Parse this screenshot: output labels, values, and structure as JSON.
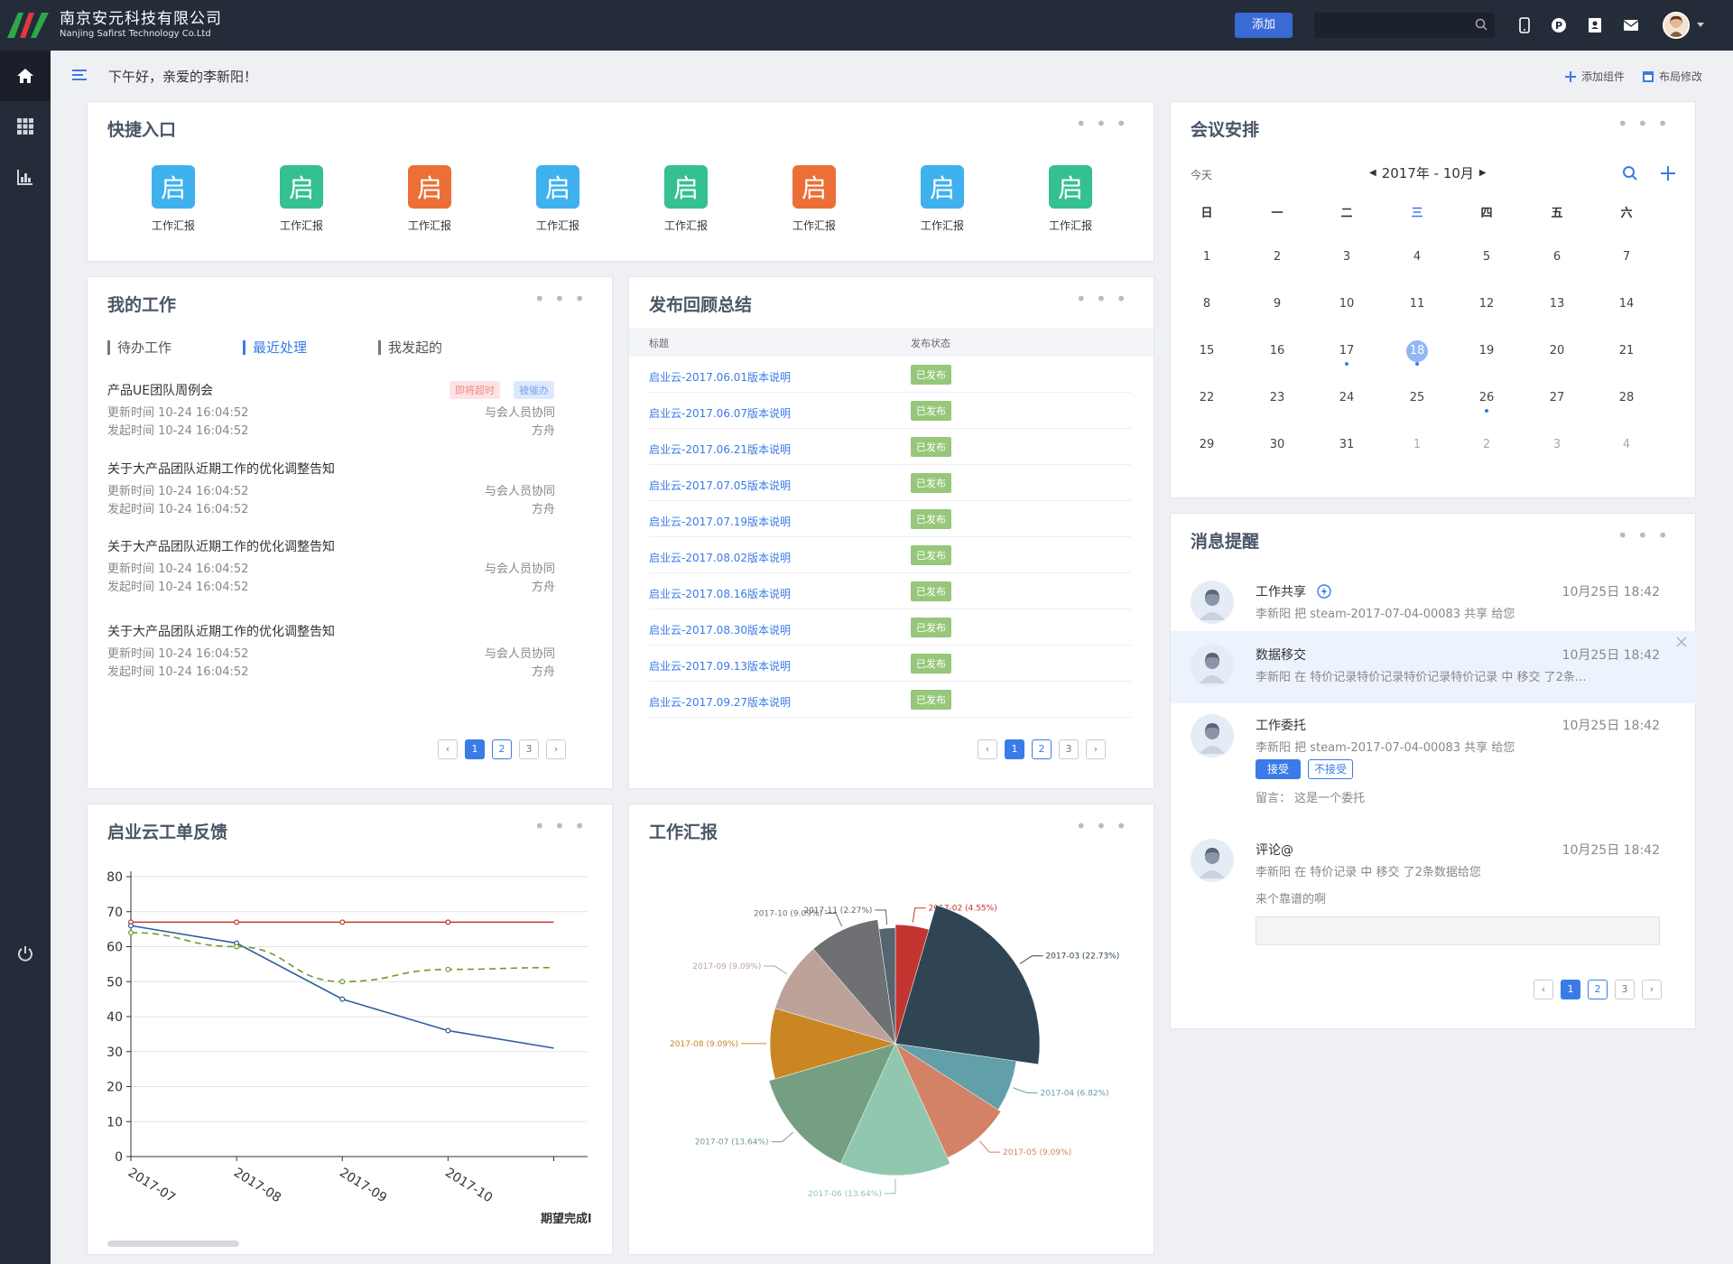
{
  "topbar": {
    "company_cn": "南京安元科技有限公司",
    "company_en": "Nanjing Safirst Technology Co.Ltd",
    "add_label": "添加",
    "search_placeholder": ""
  },
  "subhead": {
    "greeting": "下午好，亲爱的李新阳！",
    "add_widget": "添加组件",
    "layout_edit": "布局修改"
  },
  "quick_entry": {
    "title": "快捷入口",
    "items": [
      {
        "glyph": "启",
        "label": "工作汇报",
        "color": "#3fb1ee"
      },
      {
        "glyph": "启",
        "label": "工作汇报",
        "color": "#35c08f"
      },
      {
        "glyph": "启",
        "label": "工作汇报",
        "color": "#ec6f35"
      },
      {
        "glyph": "启",
        "label": "工作汇报",
        "color": "#3fb1ee"
      },
      {
        "glyph": "启",
        "label": "工作汇报",
        "color": "#35c08f"
      },
      {
        "glyph": "启",
        "label": "工作汇报",
        "color": "#ec6f35"
      },
      {
        "glyph": "启",
        "label": "工作汇报",
        "color": "#3fb1ee"
      },
      {
        "glyph": "启",
        "label": "工作汇报",
        "color": "#35c08f"
      }
    ]
  },
  "my_work": {
    "title": "我的工作",
    "tabs": [
      "待办工作",
      "最近处理",
      "我发起的"
    ],
    "items": [
      {
        "title": "产品UE团队周例会",
        "update": "更新时间  10-24 16:04:52",
        "start": "发起时间  10-24 16:04:52",
        "collab": "与会人员协同",
        "owner": "方舟",
        "badge1": "即将超时",
        "badge2": "被催办"
      },
      {
        "title": "关于大产品团队近期工作的优化调整告知",
        "update": "更新时间  10-24 16:04:52",
        "start": "发起时间  10-24 16:04:52",
        "collab": "与会人员协同",
        "owner": "方舟"
      },
      {
        "title": "关于大产品团队近期工作的优化调整告知",
        "update": "更新时间  10-24 16:04:52",
        "start": "发起时间  10-24 16:04:52",
        "collab": "与会人员协同",
        "owner": "方舟"
      },
      {
        "title": "关于大产品团队近期工作的优化调整告知",
        "update": "更新时间  10-24 16:04:52",
        "start": "发起时间  10-24 16:04:52",
        "collab": "与会人员协同",
        "owner": "方舟"
      }
    ],
    "pages": [
      "1",
      "2",
      "3"
    ]
  },
  "release": {
    "title": "发布回顾总结",
    "col_title": "标题",
    "col_status": "发布状态",
    "rows": [
      {
        "name": "启业云-2017.06.01版本说明",
        "status": "已发布"
      },
      {
        "name": "启业云-2017.06.07版本说明",
        "status": "已发布"
      },
      {
        "name": "启业云-2017.06.21版本说明",
        "status": "已发布"
      },
      {
        "name": "启业云-2017.07.05版本说明",
        "status": "已发布"
      },
      {
        "name": "启业云-2017.07.19版本说明",
        "status": "已发布"
      },
      {
        "name": "启业云-2017.08.02版本说明",
        "status": "已发布"
      },
      {
        "name": "启业云-2017.08.16版本说明",
        "status": "已发布"
      },
      {
        "name": "启业云-2017.08.30版本说明",
        "status": "已发布"
      },
      {
        "name": "启业云-2017.09.13版本说明",
        "status": "已发布"
      },
      {
        "name": "启业云-2017.09.27版本说明",
        "status": "已发布"
      }
    ],
    "pages": [
      "1",
      "2",
      "3"
    ]
  },
  "meeting": {
    "title": "会议安排",
    "today": "今天",
    "month_label": "2017年 - 10月",
    "weekdays": [
      "日",
      "一",
      "二",
      "三",
      "四",
      "五",
      "六"
    ],
    "weeks": [
      [
        "1",
        "2",
        "3",
        "4",
        "5",
        "6",
        "7"
      ],
      [
        "8",
        "9",
        "10",
        "11",
        "12",
        "13",
        "14"
      ],
      [
        "15",
        "16",
        "17",
        "18",
        "19",
        "20",
        "21"
      ],
      [
        "22",
        "23",
        "24",
        "25",
        "26",
        "27",
        "28"
      ],
      [
        "29",
        "30",
        "31",
        "1",
        "2",
        "3",
        "4"
      ]
    ],
    "selected_day": "18"
  },
  "messages": {
    "title": "消息提醒",
    "items": [
      {
        "title": "工作共享",
        "time": "10月25日 18:42",
        "desc": "李新阳 把 steam-2017-07-04-00083 共享 给您"
      },
      {
        "title": "数据移交",
        "time": "10月25日 18:42",
        "desc": "李新阳 在 特价记录特价记录特价记录特价记录 中 移交 了2条..."
      },
      {
        "title": "工作委托",
        "time": "10月25日 18:42",
        "desc": "李新阳 把 steam-2017-07-04-00083 共享 给您",
        "accept": "接受",
        "reject": "不接受",
        "note": "留言： 这是一个委托"
      },
      {
        "title": "评论@",
        "time": "10月25日 18:42",
        "desc": "李新阳 在 特价记录 中 移交 了2条数据给您",
        "note": "来个靠谱的啊"
      }
    ],
    "pages": [
      "1",
      "2",
      "3"
    ]
  },
  "feedback": {
    "title": "启业云工单反馈",
    "legend_partial": "期望完成l"
  },
  "work_report": {
    "title": "工作汇报"
  },
  "chart_data": [
    {
      "type": "line",
      "title": "启业云工单反馈",
      "categories": [
        "2017-07",
        "2017-08",
        "2017-09",
        "2017-10",
        ""
      ],
      "ylim": [
        0,
        80
      ],
      "yticks": [
        0,
        10,
        20,
        30,
        40,
        50,
        60,
        70,
        80
      ],
      "grid": true,
      "series": [
        {
          "name": "",
          "color": "#c0392b",
          "style": "solid",
          "values": [
            67,
            67,
            67,
            67,
            67
          ]
        },
        {
          "name": "",
          "color": "#2e5d9a",
          "style": "solid",
          "values": [
            66,
            61,
            45,
            36,
            31
          ]
        },
        {
          "name": "期望完成l",
          "color": "#6a9a2a",
          "style": "dashed",
          "values": [
            64,
            60,
            50,
            53.5,
            54
          ]
        }
      ]
    },
    {
      "type": "pie",
      "title": "工作汇报",
      "slices": [
        {
          "label": "2017-02 (4.55%)",
          "value": 4.55,
          "color": "#c23531"
        },
        {
          "label": "2017-03 (22.73%)",
          "value": 22.73,
          "color": "#2f4554"
        },
        {
          "label": "2017-04 (6.82%)",
          "value": 6.82,
          "color": "#61a0a8"
        },
        {
          "label": "2017-05 (9.09%)",
          "value": 9.09,
          "color": "#d48265"
        },
        {
          "label": "2017-06 (13.64%)",
          "value": 13.64,
          "color": "#91c7ae"
        },
        {
          "label": "2017-07 (13.64%)",
          "value": 13.64,
          "color": "#749f83"
        },
        {
          "label": "2017-08 (9.09%)",
          "value": 9.09,
          "color": "#ca8622"
        },
        {
          "label": "2017-09 (9.09%)",
          "value": 9.09,
          "color": "#bda29a"
        },
        {
          "label": "2017-10 (9.09%)",
          "value": 9.09,
          "color": "#6e7074"
        },
        {
          "label": "2017-11 (2.27%)",
          "value": 2.27,
          "color": "#546570"
        }
      ]
    }
  ]
}
